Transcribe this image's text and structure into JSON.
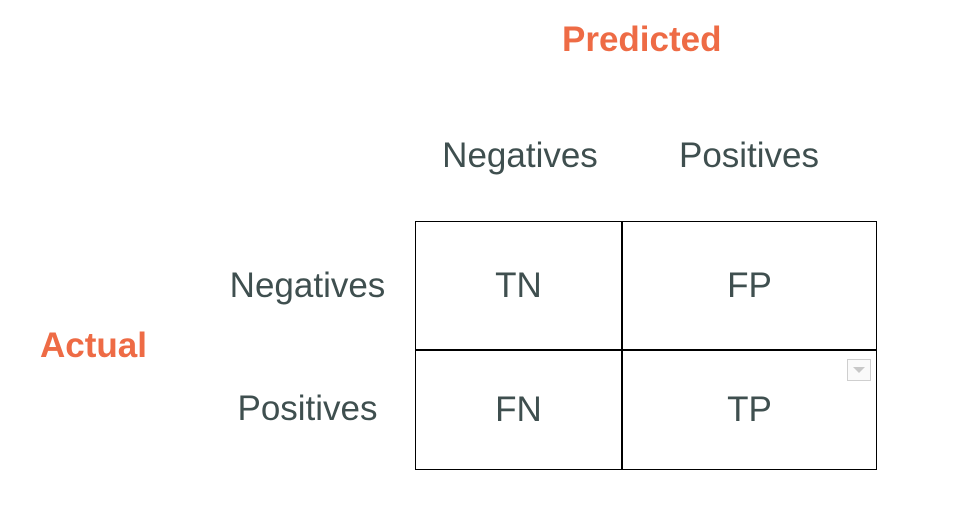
{
  "predicted_title": "Predicted",
  "actual_title": "Actual",
  "columns": [
    "Negatives",
    "Positives"
  ],
  "rows": [
    "Negatives",
    "Positives"
  ],
  "cells": [
    [
      "TN",
      "FP"
    ],
    [
      "FN",
      "TP"
    ]
  ],
  "colors": {
    "title_accent": "#ee6b45",
    "text": "#3f4f4f",
    "grid_line": "#000000"
  },
  "icons": {
    "table_handle": "chevron-down-icon"
  }
}
